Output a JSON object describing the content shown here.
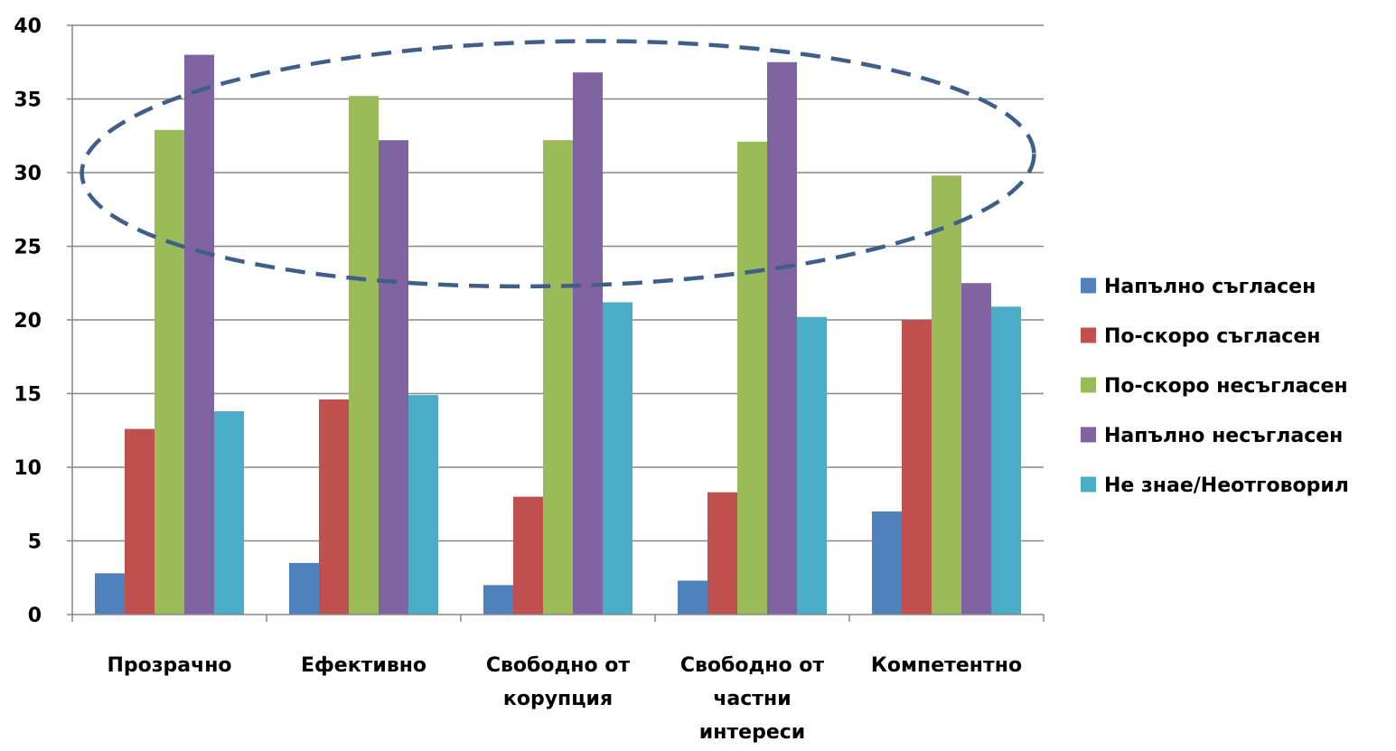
{
  "chart_data": {
    "type": "bar",
    "title": "",
    "xlabel": "",
    "ylabel": "",
    "ylim": [
      0,
      40
    ],
    "yticks": [
      0,
      5,
      10,
      15,
      20,
      25,
      30,
      35,
      40
    ],
    "grid": true,
    "legend_position": "right",
    "categories": [
      [
        "Прозрачно"
      ],
      [
        "Ефективно"
      ],
      [
        "Свободно от",
        "корупция"
      ],
      [
        "Свободно от",
        "частни",
        "интереси"
      ],
      [
        "Компетентно"
      ]
    ],
    "series": [
      {
        "name": "Напълно съгласен",
        "color": "#4F81BD",
        "values": [
          2.8,
          3.5,
          2.0,
          2.3,
          7.0
        ]
      },
      {
        "name": "По-скоро съгласен",
        "color": "#C0504D",
        "values": [
          12.6,
          14.6,
          8.0,
          8.3,
          20.0
        ]
      },
      {
        "name": "По-скоро несъгласен",
        "color": "#9BBB59",
        "values": [
          32.9,
          35.2,
          32.2,
          32.1,
          29.8
        ]
      },
      {
        "name": "Напълно несъгласен",
        "color": "#8064A2",
        "values": [
          38.0,
          32.2,
          36.8,
          37.5,
          22.5
        ]
      },
      {
        "name": "Не знае/Неотговорил",
        "color": "#4BACC6",
        "values": [
          13.8,
          14.9,
          21.2,
          20.2,
          20.9
        ]
      }
    ],
    "annotation": {
      "shape": "dashed-ellipse",
      "color": "#3F5F8A",
      "center": {
        "category_index": 2,
        "value": 30.6
      },
      "radius_y_value": 8.3
    },
    "colors": {
      "gridline": "#878787",
      "axis": "#878787"
    }
  }
}
